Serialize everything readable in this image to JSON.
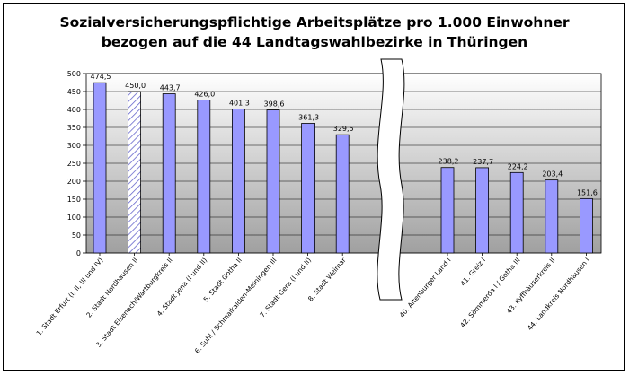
{
  "colors": {
    "bar_fill": "#9999ff",
    "bar_stroke": "#000000",
    "hatched_fill": "#ffffff",
    "plot_top": "#ffffff",
    "plot_bottom": "#a0a0a0",
    "gridline": "#000000"
  },
  "chart_data": {
    "type": "bar",
    "title": "Sozialversicherungspflichtige Arbeitsplätze pro 1.000 Einwohner",
    "subtitle": "bezogen auf die 44 Landtagswahlbezirke in Thüringen",
    "xlabel": "",
    "ylabel": "",
    "ylim": [
      0,
      500
    ],
    "yticks": [
      0,
      50,
      100,
      150,
      200,
      250,
      300,
      350,
      400,
      450,
      500
    ],
    "grid": true,
    "legend": "none",
    "axis_break_between": [
      7,
      8
    ],
    "categories": [
      "1. Stadt Erfurt (I, II, III und IV)",
      "2. Stadt Nordhausen II",
      "3. Stadt Eisenach/Wartburgkreis II",
      "4. Stadt Jena (I und II)",
      "5. Stadt Gotha II",
      "6. Suhl / Schmalkalden-Meiningen III",
      "7. Stadt Gera (I und II)",
      "8. Stadt Weimar",
      "40. Altenburger Land I",
      "41. Greiz I",
      "42. Sömmerda I / Gotha III",
      "43. Kyffhäuserkreis II",
      "44. Landkreis Nordhausen I"
    ],
    "values": [
      474.5,
      450.0,
      443.7,
      426.0,
      401.3,
      398.6,
      361.3,
      329.5,
      238.2,
      237.7,
      224.2,
      203.4,
      151.6
    ],
    "value_labels": [
      "474,5",
      "450,0",
      "443,7",
      "426,0",
      "401,3",
      "398,6",
      "361,3",
      "329,5",
      "238,2",
      "237,7",
      "224,2",
      "203,4",
      "151,6"
    ],
    "highlighted_index": 1
  }
}
